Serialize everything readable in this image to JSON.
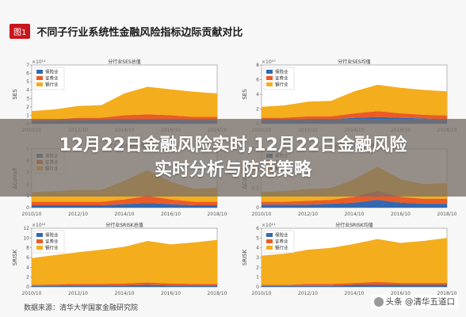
{
  "header": {
    "tag": "图1",
    "title": "不同子行业系统性金融风险指标边际贡献对比"
  },
  "banner": {
    "title": "12月22日金融风险实时,12月22日金融风险实时分析与防范策略"
  },
  "source_note": "数据来源：清华大学国家金融研究院",
  "watermark": "头条 @清华五道口",
  "colors": {
    "insurance": "#3468b0",
    "securities": "#eb5b25",
    "banking": "#f4ad1c",
    "tag": "#c8161d"
  },
  "chart_data": [
    {
      "type": "area",
      "stacked": true,
      "title": "分行业SES总值",
      "ylabel": "SES",
      "scale_note": "×10¹¹",
      "x": [
        2010,
        2011,
        2012,
        2013,
        2014,
        2015,
        2016,
        2017,
        2018
      ],
      "ylim": [
        0,
        7
      ],
      "yticks": [
        0,
        1,
        2,
        3,
        4,
        5,
        6,
        7
      ],
      "xticks": [
        "2010/10",
        "2012/10",
        "2014/10",
        "2016/10",
        "2018/10"
      ],
      "legend": [
        "保险业",
        "证券业",
        "银行业"
      ],
      "legend_position": "top-left",
      "series": [
        {
          "name": "保险业",
          "values": [
            0.3,
            0.3,
            0.4,
            0.4,
            0.5,
            0.5,
            0.5,
            0.4,
            0.4
          ]
        },
        {
          "name": "证券业",
          "values": [
            0.2,
            0.2,
            0.3,
            0.3,
            0.5,
            0.6,
            0.5,
            0.4,
            0.4
          ]
        },
        {
          "name": "银行业",
          "values": [
            1.0,
            1.2,
            1.4,
            1.5,
            2.6,
            3.3,
            3.1,
            3.0,
            2.8
          ]
        }
      ]
    },
    {
      "type": "area",
      "stacked": true,
      "title": "分行业SES均值",
      "ylabel": "SES",
      "scale_note": "×10¹⁰",
      "x": [
        2010,
        2011,
        2012,
        2013,
        2014,
        2015,
        2016,
        2017,
        2018
      ],
      "ylim": [
        0,
        8
      ],
      "yticks": [
        0,
        2,
        4,
        6,
        8
      ],
      "xticks": [
        "2010/10",
        "2012/10",
        "2014/10",
        "2016/10",
        "2018/10"
      ],
      "legend": [
        "保险业",
        "证券业",
        "银行业"
      ],
      "legend_position": "top-left",
      "series": [
        {
          "name": "保险业",
          "values": [
            0.5,
            0.5,
            0.6,
            0.6,
            0.8,
            0.9,
            0.8,
            0.7,
            0.6
          ]
        },
        {
          "name": "证券业",
          "values": [
            0.3,
            0.3,
            0.4,
            0.4,
            0.6,
            0.8,
            0.6,
            0.5,
            0.5
          ]
        },
        {
          "name": "银行业",
          "values": [
            1.5,
            1.7,
            2.0,
            2.1,
            3.0,
            3.6,
            3.5,
            3.4,
            3.3
          ]
        }
      ]
    },
    {
      "type": "area",
      "stacked": true,
      "title": "分行业ΔCoVaR总值",
      "ylabel": "ΔCoVaR",
      "scale_note": "",
      "x": [
        2010,
        2011,
        2012,
        2013,
        2014,
        2015,
        2016,
        2017,
        2018
      ],
      "ylim": [
        0,
        5
      ],
      "yticks": [
        0,
        1,
        2,
        3,
        4,
        5
      ],
      "xticks": [
        "2010/10",
        "2012/10",
        "2014/10",
        "2016/10",
        "2018/10"
      ],
      "legend": [
        "保险业",
        "证券业",
        "银行业"
      ],
      "legend_position": "top-left",
      "series": [
        {
          "name": "保险业",
          "values": [
            0.2,
            0.2,
            0.2,
            0.2,
            0.3,
            0.4,
            0.3,
            0.2,
            0.2
          ]
        },
        {
          "name": "证券业",
          "values": [
            0.3,
            0.3,
            0.3,
            0.3,
            0.4,
            0.6,
            0.4,
            0.3,
            0.3
          ]
        },
        {
          "name": "银行业",
          "values": [
            0.8,
            0.9,
            1.0,
            1.0,
            1.6,
            2.2,
            1.5,
            1.1,
            1.2
          ]
        }
      ]
    },
    {
      "type": "area",
      "stacked": true,
      "title": "分行业ΔCoVaR均值",
      "ylabel": "ΔCoVaR",
      "scale_note": "",
      "x": [
        2010,
        2011,
        2012,
        2013,
        2014,
        2015,
        2016,
        2017,
        2018
      ],
      "ylim": [
        0,
        0.6
      ],
      "yticks": [
        0,
        0.2,
        0.4,
        0.6
      ],
      "xticks": [
        "2010/10",
        "2012/10",
        "2014/10",
        "2016/10",
        "2018/10"
      ],
      "legend": [
        "保险业",
        "证券业",
        "银行业"
      ],
      "legend_position": "top-left",
      "series": [
        {
          "name": "保险业",
          "values": [
            0.03,
            0.03,
            0.03,
            0.04,
            0.05,
            0.08,
            0.05,
            0.04,
            0.04
          ]
        },
        {
          "name": "证券业",
          "values": [
            0.03,
            0.03,
            0.04,
            0.04,
            0.06,
            0.09,
            0.06,
            0.05,
            0.05
          ]
        },
        {
          "name": "银行业",
          "values": [
            0.1,
            0.11,
            0.12,
            0.12,
            0.18,
            0.25,
            0.18,
            0.15,
            0.16
          ]
        }
      ]
    },
    {
      "type": "area",
      "stacked": true,
      "title": "分行业SRISK总值",
      "ylabel": "SRISK",
      "scale_note": "×10¹²",
      "x": [
        2010,
        2011,
        2012,
        2013,
        2014,
        2015,
        2016,
        2017,
        2018
      ],
      "ylim": [
        0,
        12
      ],
      "yticks": [
        0,
        2,
        4,
        6,
        8,
        10,
        12
      ],
      "xticks": [
        "2010/10",
        "2012/10",
        "2014/10",
        "2016/10",
        "2018/10"
      ],
      "legend": [
        "保险业",
        "证券业",
        "银行业"
      ],
      "legend_position": "top-left",
      "series": [
        {
          "name": "保险业",
          "values": [
            0.2,
            0.2,
            0.3,
            0.3,
            0.3,
            0.4,
            0.3,
            0.3,
            0.3
          ]
        },
        {
          "name": "证券业",
          "values": [
            0.2,
            0.3,
            0.3,
            0.3,
            0.4,
            0.5,
            0.4,
            0.3,
            0.3
          ]
        },
        {
          "name": "银行业",
          "values": [
            5.5,
            6.0,
            6.5,
            7.0,
            7.5,
            8.5,
            8.0,
            8.5,
            9.0
          ]
        }
      ]
    },
    {
      "type": "area",
      "stacked": true,
      "title": "分行业SRISK均值",
      "ylabel": "SRISK",
      "scale_note": "×10¹¹",
      "x": [
        2010,
        2011,
        2012,
        2013,
        2014,
        2015,
        2016,
        2017,
        2018
      ],
      "ylim": [
        0,
        6
      ],
      "yticks": [
        0,
        1,
        2,
        3,
        4,
        5,
        6
      ],
      "xticks": [
        "2010/10",
        "2012/10",
        "2014/10",
        "2016/10",
        "2018/10"
      ],
      "legend": [
        "保险业",
        "证券业",
        "银行业"
      ],
      "legend_position": "top-left",
      "series": [
        {
          "name": "保险业",
          "values": [
            0.1,
            0.1,
            0.1,
            0.1,
            0.2,
            0.2,
            0.2,
            0.2,
            0.2
          ]
        },
        {
          "name": "证券业",
          "values": [
            0.1,
            0.1,
            0.2,
            0.2,
            0.2,
            0.3,
            0.2,
            0.2,
            0.2
          ]
        },
        {
          "name": "银行业",
          "values": [
            3.0,
            3.2,
            3.5,
            3.7,
            4.0,
            4.4,
            4.1,
            4.3,
            4.6
          ]
        }
      ]
    }
  ]
}
